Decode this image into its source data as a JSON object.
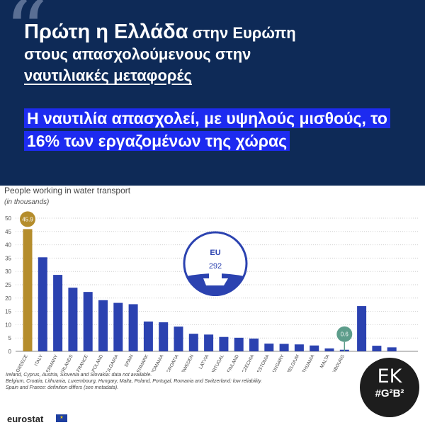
{
  "headline": {
    "part1": "Πρώτη η Ελλάδα",
    "part2": " στην Ευρώπη",
    "part3": "στους απασχολούμενους στην",
    "part4": "ναυτιλιακές μεταφορές"
  },
  "subheadline": "Η ναυτιλία απασχολεί, με υψηλούς μισθούς, το 16% των εργαζομένων της χώρας",
  "icons": {
    "quote": "quote-mark-icon",
    "ship": "ship-icon",
    "flag": "eu-flag-icon"
  },
  "chart_data": {
    "type": "bar",
    "title": "People working in water transport",
    "ylabel": "(in thousands)",
    "ylim": [
      0,
      50
    ],
    "yticks": [
      0,
      5,
      10,
      15,
      20,
      25,
      30,
      35,
      40,
      45,
      50
    ],
    "grid": true,
    "categories": [
      "GREECE",
      "ITALY",
      "GERMANY",
      "NETHERLANDS",
      "FRANCE",
      "POLAND",
      "BULGARIA",
      "SPAIN",
      "DENMARK",
      "ROMANIA",
      "CROATIA",
      "SWEDEN",
      "LATVIA",
      "PORTUGAL",
      "FINLAND",
      "CZECHIA",
      "ESTONIA",
      "HUNGARY",
      "BELGIUM",
      "LITHUANIA",
      "MALTA",
      "LUXEMBOURG",
      "",
      "",
      ""
    ],
    "values": [
      45.9,
      35.3,
      28.7,
      23.9,
      22.3,
      19.2,
      18.2,
      17.7,
      11.2,
      10.9,
      9.3,
      6.6,
      6.3,
      5.4,
      5.1,
      4.8,
      2.9,
      2.8,
      2.6,
      2.2,
      1.1,
      0.6,
      17.0,
      2.1,
      1.5
    ],
    "highlight": {
      "category": "GREECE",
      "label": "45.9",
      "color": "#b58d2c"
    },
    "callout": {
      "category": "LUXEMBOURG",
      "label": "0.6",
      "color": "#5d9d8b"
    },
    "eu_total": {
      "label": "EU",
      "value": "292"
    },
    "bar_color": "#2b42b0",
    "grid_color": "#cfcfcf"
  },
  "notes": [
    "Ireland, Cyprus, Austria, Slovenia and Slovakia: data not available.",
    "Belgium, Croatia, Lithuania, Luxembourg, Hungary, Malta, Poland, Portugal, Romania and Switzerland: low reliability.",
    "Spain and France: definition differs (see metadata)."
  ],
  "footer": {
    "source": "eurostat"
  },
  "logo": {
    "line1": "EK",
    "line2": "#G²B²"
  }
}
